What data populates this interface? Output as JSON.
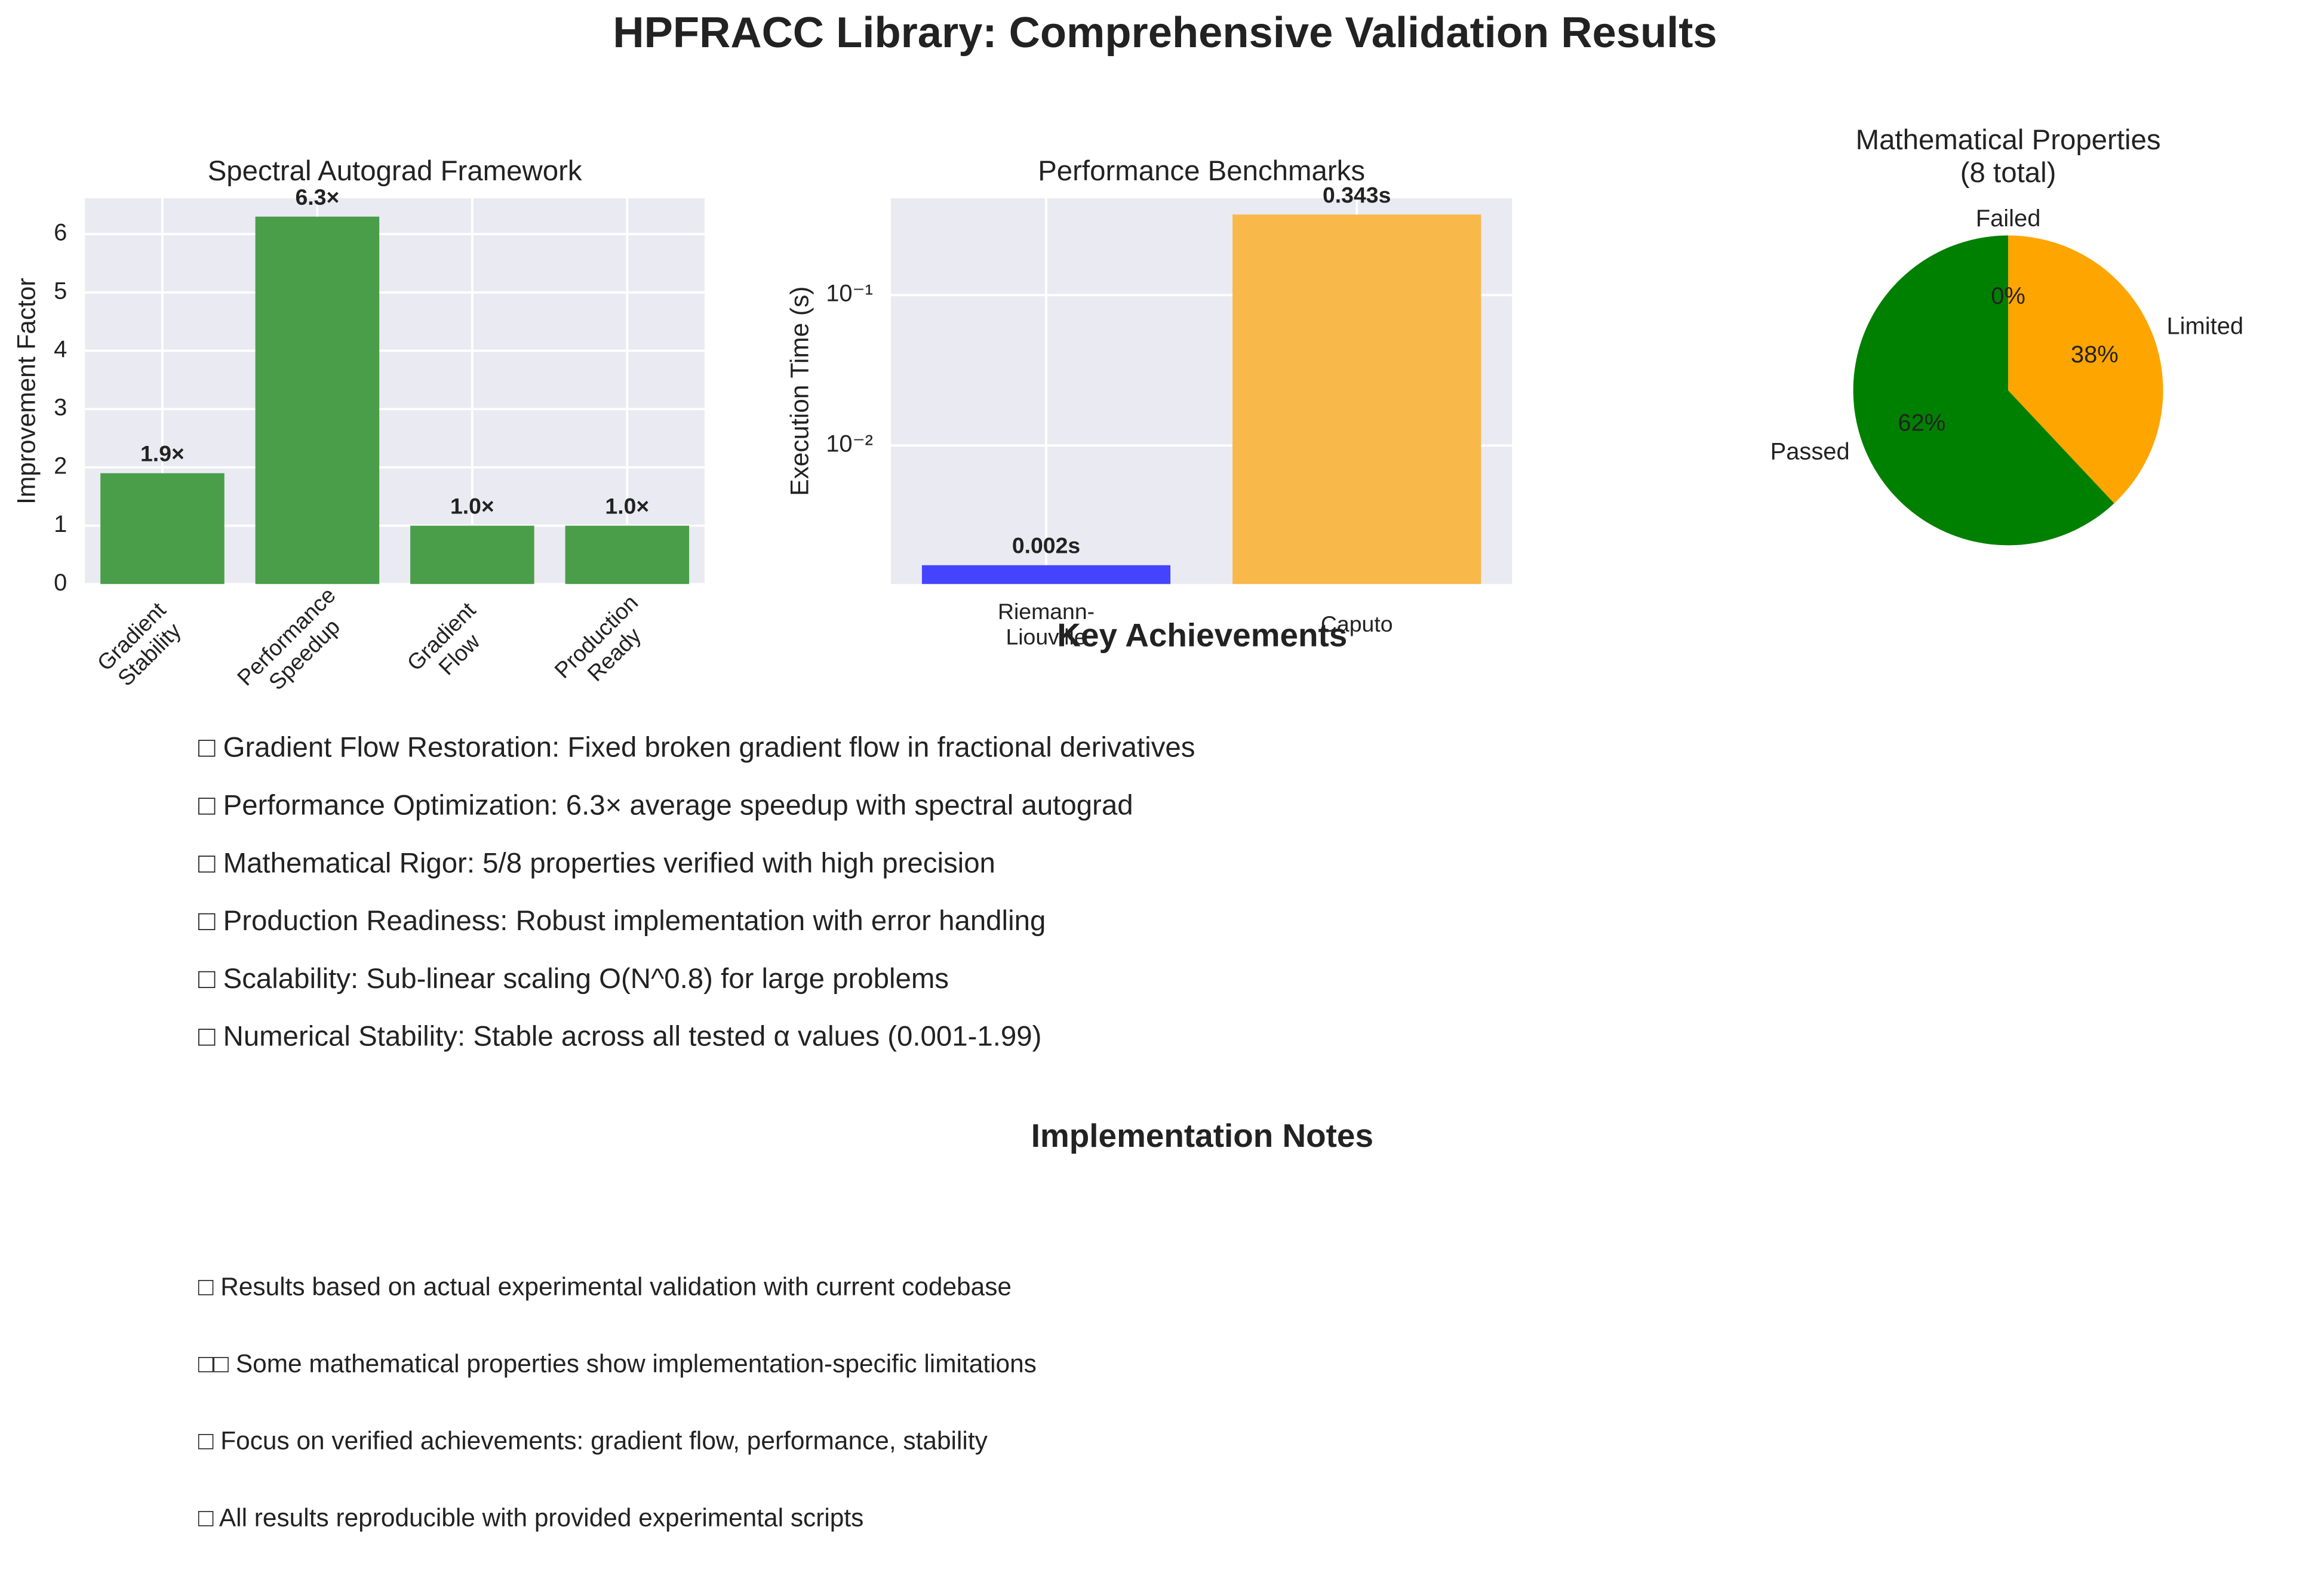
{
  "title": "HPFRACC Library: Comprehensive Validation Results",
  "chart_data": [
    {
      "type": "bar",
      "title": "Spectral Autograd Framework",
      "ylabel": "Improvement Factor",
      "categories": [
        "Gradient\nStability",
        "Performance\nSpeedup",
        "Gradient\nFlow",
        "Production\nReady"
      ],
      "values": [
        1.9,
        6.3,
        1.0,
        1.0
      ],
      "value_labels": [
        "1.9×",
        "6.3×",
        "1.0×",
        "1.0×"
      ],
      "color": "#4a9e4a",
      "ylim": [
        0,
        6.615
      ],
      "yticks": [
        0,
        1,
        2,
        3,
        4,
        5,
        6
      ],
      "grid": true
    },
    {
      "type": "bar",
      "title": "Performance Benchmarks",
      "ylabel": "Execution Time (s)",
      "log": true,
      "categories": [
        "Riemann-\nLiouville",
        "Caputo"
      ],
      "values": [
        0.0016,
        0.343
      ],
      "value_labels": [
        "0.002s",
        "0.343s"
      ],
      "colors": [
        "#4444ff",
        "#f8b84a"
      ],
      "ylim": [
        0.0012,
        0.44
      ],
      "yticks": [
        {
          "value": 0.01,
          "label": "10⁻²"
        },
        {
          "value": 0.1,
          "label": "10⁻¹"
        }
      ],
      "grid": true
    },
    {
      "type": "pie",
      "title": "Mathematical Properties\n(8 total)",
      "labels": [
        "Passed",
        "Limited",
        "Failed"
      ],
      "values": [
        62,
        38,
        0
      ],
      "value_labels": [
        "62%",
        "38%",
        "0%"
      ],
      "colors": [
        "#008000",
        "#ffa500",
        "#ff0000"
      ]
    }
  ],
  "key_achievements": {
    "heading": "Key Achievements",
    "items": [
      "□ Gradient Flow Restoration: Fixed broken gradient flow in fractional derivatives",
      "□ Performance Optimization: 6.3× average speedup with spectral autograd",
      "□ Mathematical Rigor: 5/8 properties verified with high precision",
      "□ Production Readiness: Robust implementation with error handling",
      "□ Scalability: Sub-linear scaling O(N^0.8) for large problems",
      "□ Numerical Stability: Stable across all tested α values (0.001-1.99)"
    ]
  },
  "implementation_notes": {
    "heading": "Implementation Notes",
    "items": [
      "□ Results based on actual experimental validation with current codebase",
      "□□  Some mathematical properties show implementation-specific limitations",
      "□ Focus on verified achievements: gradient flow, performance, stability",
      "□ All results reproducible with provided experimental scripts"
    ]
  }
}
